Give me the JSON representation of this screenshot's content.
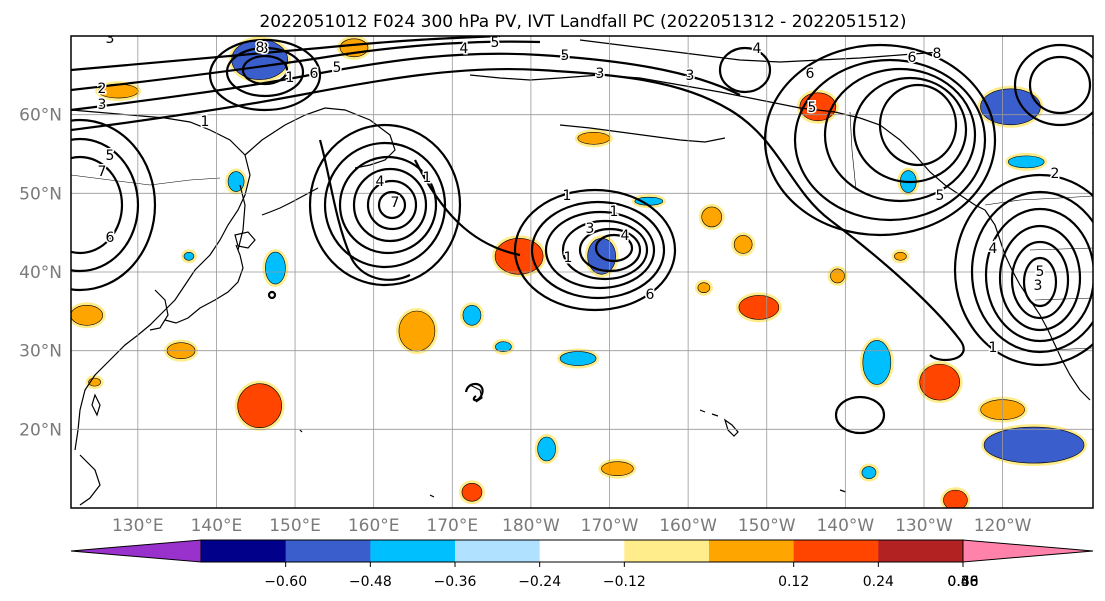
{
  "title": "2022051012 F024 300 hPa PV, IVT Landfall PC (2022051312 - 2022051512)",
  "lat_labels": [
    "60°N",
    "50°N",
    "40°N",
    "30°N",
    "20°N"
  ],
  "lon_labels": [
    "130°E",
    "140°E",
    "150°E",
    "160°E",
    "170°E",
    "180°W",
    "170°W",
    "160°W",
    "150°W",
    "140°W",
    "130°W",
    "120°W"
  ],
  "colorbar": {
    "colors": [
      "#9932cc",
      "#00008b",
      "#3a5fcd",
      "#00bfff",
      "#b0e2ff",
      "#ffffff",
      "#ffec8b",
      "#ffa500",
      "#ff4500",
      "#b22222",
      "#ff82ab"
    ],
    "tick_labels": [
      "−0.60",
      "−0.48",
      "−0.36",
      "−0.24",
      "−0.12",
      "0.12",
      "0.24",
      "0.36",
      "0.48",
      "0.60"
    ],
    "extend": "both"
  },
  "contour_labels": [
    "3",
    "2",
    "3",
    "5",
    "7",
    "6",
    "8",
    "1",
    "6",
    "5",
    "1",
    "4",
    "5",
    "5",
    "3",
    "3",
    "4",
    "1",
    "4",
    "7",
    "1",
    "1",
    "1",
    "3",
    "4",
    "6",
    "6",
    "5",
    "5",
    "4",
    "5",
    "3",
    "6",
    "8",
    "1",
    "8",
    "2",
    "1"
  ],
  "filled_regions": [
    {
      "lon": 145.5,
      "lat": 67,
      "rx": 28,
      "ry": 20,
      "color": "#3a5fcd"
    },
    {
      "lon": 157.5,
      "lat": 68.5,
      "rx": 14,
      "ry": 9,
      "color": "#ffa500"
    },
    {
      "lon": 127.5,
      "lat": 63,
      "rx": 20,
      "ry": 7,
      "color": "#ffa500"
    },
    {
      "lon": 142.5,
      "lat": 51.5,
      "rx": 8,
      "ry": 10,
      "color": "#00bfff"
    },
    {
      "lon": 136.5,
      "lat": 42,
      "rx": 5,
      "ry": 4,
      "color": "#00bfff"
    },
    {
      "lon": 147.5,
      "lat": 40.5,
      "rx": 10,
      "ry": 16,
      "color": "#00bfff"
    },
    {
      "lon": 123.5,
      "lat": 34.5,
      "rx": 16,
      "ry": 10,
      "color": "#ffa500"
    },
    {
      "lon": 135.5,
      "lat": 30,
      "rx": 14,
      "ry": 8,
      "color": "#ffa500"
    },
    {
      "lon": 124.5,
      "lat": 26,
      "rx": 6,
      "ry": 4,
      "color": "#ffa500"
    },
    {
      "lon": 145.5,
      "lat": 23,
      "rx": 22,
      "ry": 22,
      "color": "#ff4500"
    },
    {
      "lon": 165.5,
      "lat": 32.5,
      "rx": 18,
      "ry": 20,
      "color": "#ffa500"
    },
    {
      "lon": 172.5,
      "lat": 34.5,
      "rx": 9,
      "ry": 10,
      "color": "#00bfff"
    },
    {
      "lon": 176.5,
      "lat": 30.5,
      "rx": 8,
      "ry": 5,
      "color": "#00bfff"
    },
    {
      "lon": 178.5,
      "lat": 42,
      "rx": 24,
      "ry": 18,
      "color": "#ff4500"
    },
    {
      "lon": -171,
      "lat": 42,
      "rx": 14,
      "ry": 18,
      "color": "#3a5fcd"
    },
    {
      "lon": -174,
      "lat": 29,
      "rx": 18,
      "ry": 7,
      "color": "#00bfff"
    },
    {
      "lon": -172,
      "lat": 57,
      "rx": 16,
      "ry": 6,
      "color": "#ffa500"
    },
    {
      "lon": -165,
      "lat": 49,
      "rx": 14,
      "ry": 4,
      "color": "#00bfff"
    },
    {
      "lon": -157,
      "lat": 47,
      "rx": 10,
      "ry": 10,
      "color": "#ffa500"
    },
    {
      "lon": -153,
      "lat": 43.5,
      "rx": 9,
      "ry": 9,
      "color": "#ffa500"
    },
    {
      "lon": -151,
      "lat": 35.5,
      "rx": 20,
      "ry": 12,
      "color": "#ff4500"
    },
    {
      "lon": -143.5,
      "lat": 61,
      "rx": 18,
      "ry": 14,
      "color": "#ff4500"
    },
    {
      "lon": -141,
      "lat": 39.5,
      "rx": 7,
      "ry": 7,
      "color": "#ffa500"
    },
    {
      "lon": -133,
      "lat": 42,
      "rx": 6,
      "ry": 4,
      "color": "#ffa500"
    },
    {
      "lon": -132,
      "lat": 51.5,
      "rx": 8,
      "ry": 11,
      "color": "#00bfff"
    },
    {
      "lon": -136,
      "lat": 28.5,
      "rx": 14,
      "ry": 22,
      "color": "#00bfff"
    },
    {
      "lon": -128,
      "lat": 26,
      "rx": 20,
      "ry": 18,
      "color": "#ff4500"
    },
    {
      "lon": -119,
      "lat": 61,
      "rx": 30,
      "ry": 18,
      "color": "#3a5fcd"
    },
    {
      "lon": -117,
      "lat": 54,
      "rx": 18,
      "ry": 6,
      "color": "#00bfff"
    },
    {
      "lon": -120,
      "lat": 22.5,
      "rx": 22,
      "ry": 10,
      "color": "#ffa500"
    },
    {
      "lon": -116,
      "lat": 18,
      "rx": 50,
      "ry": 18,
      "color": "#3a5fcd"
    },
    {
      "lon": -169,
      "lat": 15,
      "rx": 16,
      "ry": 7,
      "color": "#ffa500"
    },
    {
      "lon": -158,
      "lat": 38,
      "rx": 6,
      "ry": 5,
      "color": "#ffa500"
    },
    {
      "lon": -137,
      "lat": 14.5,
      "rx": 7,
      "ry": 6,
      "color": "#00bfff"
    },
    {
      "lon": -126,
      "lat": 11,
      "rx": 12,
      "ry": 10,
      "color": "#ff4500"
    },
    {
      "lon": 172.5,
      "lat": 12,
      "rx": 10,
      "ry": 9,
      "color": "#ff4500"
    },
    {
      "lon": -178,
      "lat": 17.5,
      "rx": 9,
      "ry": 12,
      "color": "#00bfff"
    }
  ]
}
